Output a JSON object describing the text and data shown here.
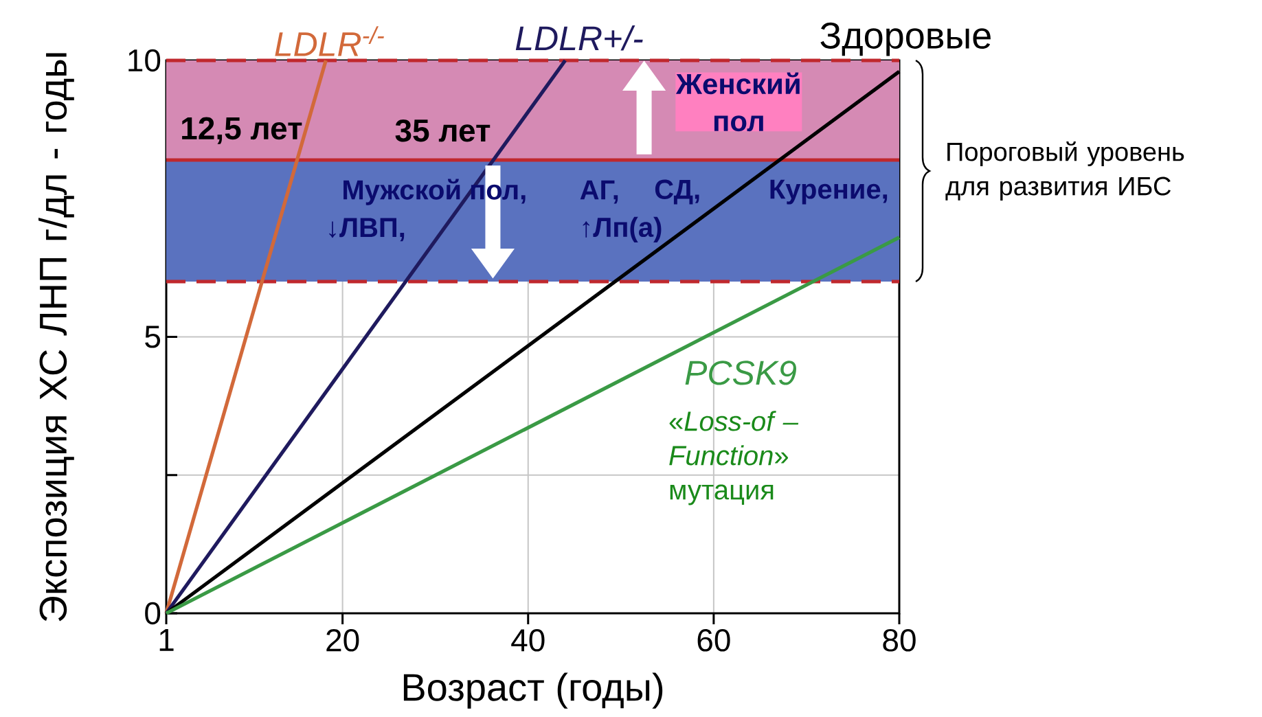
{
  "chart_data": {
    "type": "line",
    "xlabel": "Возраст (годы)",
    "ylabel": "Экспозиция ХС ЛНП г/дл - годы",
    "xlim": [
      1,
      80
    ],
    "ylim": [
      0,
      10
    ],
    "xticks": [
      1,
      20,
      40,
      60,
      80
    ],
    "yticks": [
      0,
      {
        "value": 2.5,
        "label": null
      },
      5,
      {
        "value": 7.5,
        "label": null
      },
      10
    ],
    "grid": true,
    "marker": "none",
    "line_style": "solid",
    "series": [
      {
        "name": "LDLR$^{-/-}$",
        "color": "#d2693a",
        "x": [
          1,
          18.2
        ],
        "values": [
          0,
          10
        ]
      },
      {
        "name": "LDLR+/-",
        "color": "#1f1a5e",
        "x": [
          1,
          44
        ],
        "values": [
          0,
          10
        ]
      },
      {
        "name": "Здоровые",
        "color": "#000000",
        "x": [
          1,
          80
        ],
        "values": [
          0,
          9.8
        ]
      },
      {
        "name": "PCSK9",
        "color": "#3a9a45",
        "x": [
          1,
          80
        ],
        "values": [
          0,
          6.8
        ]
      }
    ],
    "bands": [
      {
        "axis": "y",
        "from": 8.2,
        "to": 10,
        "color": "#d58ab4"
      },
      {
        "axis": "y",
        "from": 6,
        "to": 8.2,
        "color": "#5a72bf"
      }
    ],
    "ref_lines": [
      {
        "axis": "y",
        "value": 10,
        "color": "#c0282d",
        "line_style": "dashed"
      },
      {
        "axis": "y",
        "value": 8.2,
        "color": "#c0282d",
        "line_style": "solid"
      },
      {
        "axis": "y",
        "value": 6,
        "color": "#c0282d",
        "line_style": "dashed"
      }
    ],
    "annotations": [
      "12,5 лет",
      "35 лет",
      "Женский пол",
      "Мужской пол,",
      "АГ,",
      "СД,",
      "Курение,",
      "↓ЛВП,",
      "↑Лп(а)",
      "Пороговый уровень для развития ИБС",
      "«*Loss-of – Function*» мутация"
    ]
  }
}
